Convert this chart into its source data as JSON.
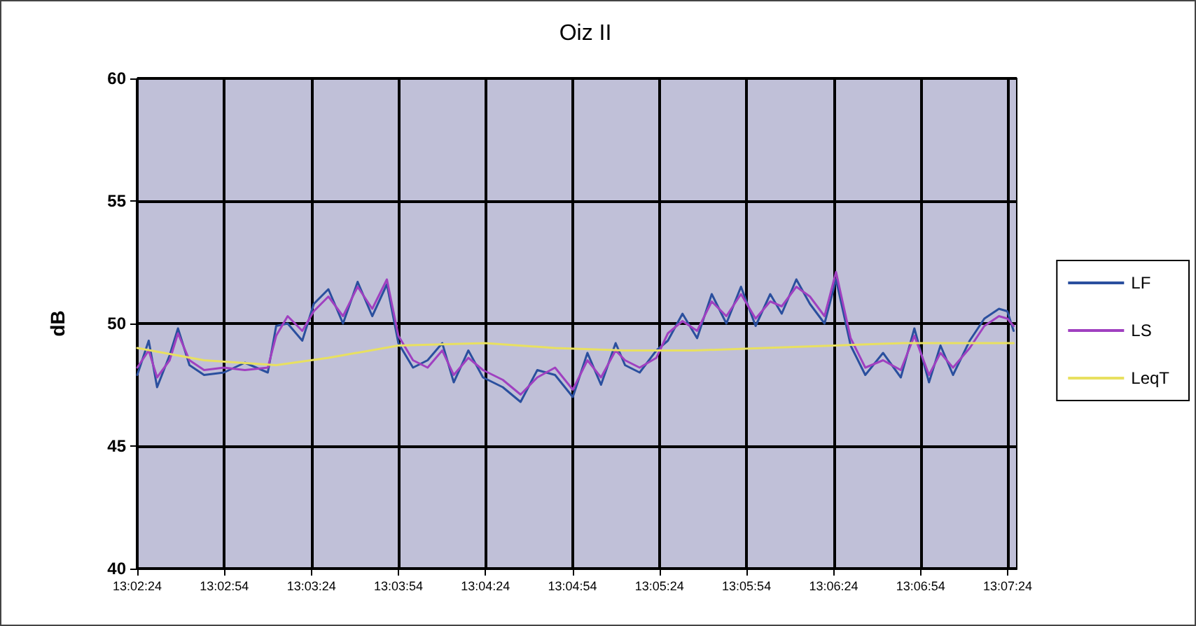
{
  "chart_data": {
    "type": "line",
    "title": "Oiz II",
    "ylabel": "dB",
    "xlim": [
      13.04,
      13.1242
    ],
    "ylim": [
      40,
      60
    ],
    "yticks": [
      40,
      45,
      50,
      55,
      60
    ],
    "xticks": [
      {
        "value": 13.04,
        "label": "13:02:24"
      },
      {
        "value": 13.04833,
        "label": "13:02:54"
      },
      {
        "value": 13.05667,
        "label": "13:03:24"
      },
      {
        "value": 13.065,
        "label": "13:03:54"
      },
      {
        "value": 13.07333,
        "label": "13:04:24"
      },
      {
        "value": 13.08167,
        "label": "13:04:54"
      },
      {
        "value": 13.09,
        "label": "13:05:24"
      },
      {
        "value": 13.09833,
        "label": "13:05:54"
      },
      {
        "value": 13.10667,
        "label": "13:06:24"
      },
      {
        "value": 13.115,
        "label": "13:06:54"
      },
      {
        "value": 13.12333,
        "label": "13:07:24"
      }
    ],
    "x": [
      13.04,
      13.0411,
      13.0419,
      13.0431,
      13.0439,
      13.045,
      13.0464,
      13.0483,
      13.0503,
      13.0525,
      13.0533,
      13.0544,
      13.0558,
      13.0569,
      13.0583,
      13.0597,
      13.0611,
      13.0625,
      13.0639,
      13.065,
      13.0664,
      13.0678,
      13.0692,
      13.0703,
      13.0717,
      13.0731,
      13.075,
      13.0767,
      13.0783,
      13.08,
      13.0817,
      13.0831,
      13.0844,
      13.0858,
      13.0867,
      13.0881,
      13.0897,
      13.0908,
      13.0922,
      13.0936,
      13.095,
      13.0964,
      13.0978,
      13.0992,
      13.1006,
      13.1017,
      13.1031,
      13.1044,
      13.1058,
      13.1069,
      13.1083,
      13.1097,
      13.1114,
      13.1131,
      13.1144,
      13.1158,
      13.1169,
      13.1181,
      13.1197,
      13.1211,
      13.1225,
      13.1233,
      13.1239
    ],
    "series": [
      {
        "name": "LF",
        "color": "#2a4f9e",
        "values": [
          47.9,
          49.3,
          47.4,
          48.7,
          49.8,
          48.3,
          47.9,
          48.0,
          48.4,
          48.0,
          49.9,
          50.0,
          49.3,
          50.8,
          51.4,
          50.0,
          51.7,
          50.3,
          51.6,
          49.2,
          48.2,
          48.5,
          49.2,
          47.6,
          48.9,
          47.8,
          47.4,
          46.8,
          48.1,
          47.9,
          47.0,
          48.8,
          47.5,
          49.2,
          48.3,
          48.0,
          48.9,
          49.3,
          50.4,
          49.4,
          51.2,
          50.0,
          51.5,
          49.9,
          51.2,
          50.4,
          51.8,
          50.8,
          50.0,
          51.8,
          49.1,
          47.9,
          48.8,
          47.8,
          49.8,
          47.6,
          49.1,
          47.9,
          49.3,
          50.2,
          50.6,
          50.5,
          49.7
        ]
      },
      {
        "name": "LS",
        "color": "#a040c0",
        "values": [
          48.2,
          48.9,
          47.8,
          48.5,
          49.6,
          48.5,
          48.1,
          48.2,
          48.1,
          48.2,
          49.5,
          50.3,
          49.7,
          50.5,
          51.1,
          50.3,
          51.5,
          50.6,
          51.8,
          49.5,
          48.5,
          48.2,
          48.9,
          47.9,
          48.6,
          48.1,
          47.7,
          47.1,
          47.8,
          48.2,
          47.3,
          48.5,
          47.8,
          48.9,
          48.5,
          48.2,
          48.6,
          49.6,
          50.1,
          49.7,
          50.9,
          50.3,
          51.2,
          50.2,
          50.9,
          50.7,
          51.5,
          51.1,
          50.3,
          52.1,
          49.4,
          48.2,
          48.5,
          48.1,
          49.5,
          47.9,
          48.8,
          48.2,
          49.0,
          49.9,
          50.3,
          50.2,
          49.9
        ]
      },
      {
        "name": "LeqT",
        "color": "#e8e060",
        "x": [
          13.04,
          13.0464,
          13.0533,
          13.0583,
          13.065,
          13.0733,
          13.08,
          13.0867,
          13.0933,
          13.1,
          13.1067,
          13.1133,
          13.1239
        ],
        "values": [
          49.0,
          48.5,
          48.3,
          48.6,
          49.1,
          49.2,
          49.0,
          48.9,
          48.9,
          49.0,
          49.1,
          49.2,
          49.2
        ]
      }
    ],
    "grid": true,
    "legend": "right",
    "marker": "none",
    "line_style": "solid"
  }
}
